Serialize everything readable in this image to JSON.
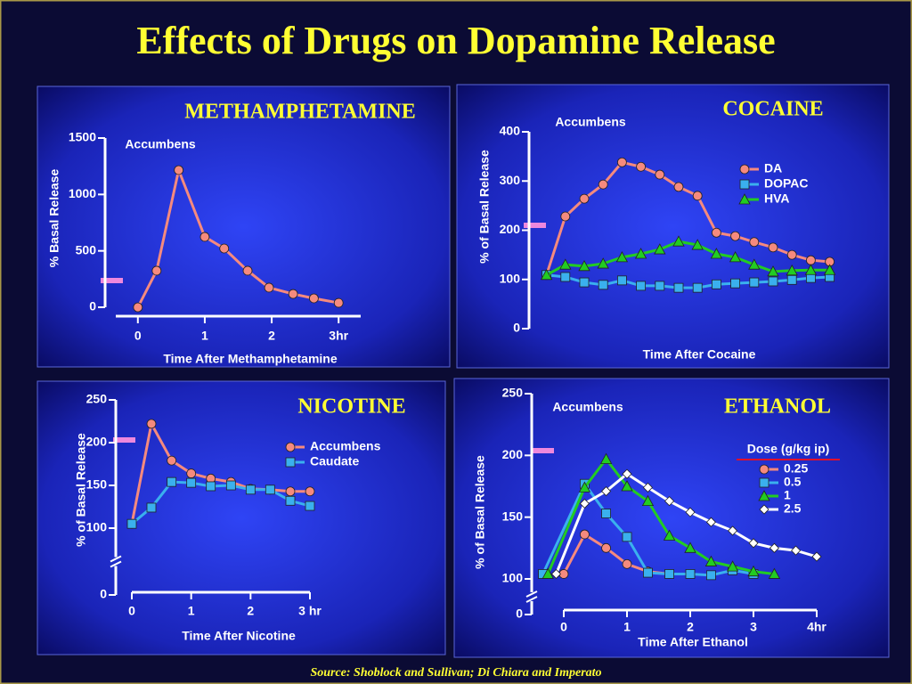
{
  "title": "Effects of Drugs on Dopamine Release",
  "source": "Source: Shoblock and Sullivan; Di Chiara and Imperato",
  "chart_data": [
    {
      "type": "line",
      "title": "METHAMPHETAMINE",
      "annotation": "Accumbens",
      "xlabel": "Time After Methamphetamine",
      "ylabel": "% Basal Release",
      "xlim": [
        -0.33,
        3.33
      ],
      "xticks": [
        0,
        1,
        2,
        {
          "value": 3,
          "label": "3hr"
        }
      ],
      "ylim": [
        0,
        1500
      ],
      "yticks": [
        0,
        500,
        1000,
        1500
      ],
      "x": [
        0,
        0.28,
        0.61,
        1,
        1.29,
        1.64,
        1.96,
        2.32,
        2.63,
        3
      ],
      "series": [
        {
          "color": "#f58a7e",
          "marker": "circle",
          "values": [
            0,
            324,
            1216,
            624,
            521,
            324,
            174,
            118,
            79,
            39
          ]
        }
      ]
    },
    {
      "type": "line",
      "title": "COCAINE",
      "annotation": "Accumbens",
      "xlabel": "Time After Cocaine",
      "ylabel": "% of Basal Release",
      "ylim": [
        0,
        400
      ],
      "yticks": [
        0,
        100,
        200,
        300,
        400
      ],
      "categories": [
        null,
        null,
        null,
        null,
        null,
        null,
        null,
        null,
        null,
        null,
        null,
        null,
        null,
        null,
        null,
        null
      ],
      "series": [
        {
          "name": "DA",
          "color": "#f58a7e",
          "marker": "circle",
          "values": [
            109,
            228,
            264,
            293,
            338,
            329,
            313,
            288,
            270,
            195,
            188,
            176,
            165,
            150,
            139,
            136
          ]
        },
        {
          "name": "DOPAC",
          "color": "#3ab0ee",
          "marker": "square",
          "values": [
            109,
            105,
            94,
            89,
            98,
            87,
            87,
            83,
            83,
            90,
            92,
            94,
            96,
            99,
            103,
            105
          ]
        },
        {
          "name": "HVA",
          "color": "#22cc22",
          "marker": "triangle",
          "values": [
            109,
            130,
            127,
            132,
            145,
            152,
            161,
            177,
            170,
            152,
            145,
            130,
            116,
            118,
            119,
            119
          ]
        }
      ]
    },
    {
      "type": "line",
      "title": "NICOTINE",
      "xlabel": "Time After Nicotine",
      "ylabel": "% of Basal Release",
      "xlim": [
        0,
        3
      ],
      "xticks": [
        0,
        1,
        2,
        {
          "value": 3,
          "label": "3 hr"
        }
      ],
      "ylim": [
        0,
        250
      ],
      "axis_break": [
        0,
        100
      ],
      "yticks": [
        0,
        100,
        150,
        200,
        250
      ],
      "x": [
        0,
        0.33,
        0.67,
        1,
        1.33,
        1.67,
        2,
        2.33,
        2.67,
        3
      ],
      "series": [
        {
          "name": "Accumbens",
          "color": "#f58a7e",
          "marker": "circle",
          "values": [
            105,
            222,
            179,
            164,
            158,
            154,
            146,
            145,
            143,
            143
          ]
        },
        {
          "name": "Caudate",
          "color": "#3ab0ee",
          "marker": "square",
          "values": [
            105,
            124,
            154,
            153,
            149,
            150,
            145,
            145,
            132,
            126
          ]
        }
      ]
    },
    {
      "type": "line",
      "title": "ETHANOL",
      "annotation": "Accumbens",
      "xlabel": "Time After Ethanol",
      "ylabel": "% of Basal Release",
      "legend_title": "Dose (g/kg ip)",
      "xlim": [
        -0.5,
        4
      ],
      "xticks": [
        0,
        1,
        2,
        3,
        {
          "value": 4,
          "label": "4hr"
        }
      ],
      "ylim": [
        0,
        250
      ],
      "axis_break": [
        0,
        100
      ],
      "yticks": [
        0,
        100,
        150,
        200,
        250
      ],
      "series": [
        {
          "name": "0.25",
          "color": "#f58a7e",
          "marker": "circle",
          "x": [
            0,
            0.33,
            0.67,
            1,
            1.33,
            1.67
          ],
          "values": [
            104,
            136,
            125,
            112,
            106,
            104
          ]
        },
        {
          "name": "0.5",
          "color": "#3ab0ee",
          "marker": "square",
          "x": [
            -0.33,
            0.33,
            0.67,
            1,
            1.33,
            1.67,
            2,
            2.33,
            2.67,
            3
          ],
          "values": [
            104,
            177,
            153,
            134,
            105,
            104,
            104,
            103,
            107,
            104
          ]
        },
        {
          "name": "1",
          "color": "#22cc22",
          "marker": "triangle",
          "x": [
            -0.25,
            0.33,
            0.67,
            1,
            1.33,
            1.67,
            2,
            2.33,
            2.67,
            3,
            3.33
          ],
          "values": [
            104,
            174,
            197,
            175,
            163,
            135,
            125,
            114,
            110,
            106,
            104
          ]
        },
        {
          "name": "2.5",
          "color": "#ffffff",
          "marker": "diamond",
          "x": [
            -0.12,
            0.33,
            0.67,
            1,
            1.33,
            1.67,
            2,
            2.33,
            2.67,
            3,
            3.33,
            3.67,
            4
          ],
          "values": [
            104,
            161,
            171,
            185,
            174,
            163,
            154,
            146,
            139,
            129,
            125,
            123,
            118
          ]
        }
      ]
    }
  ]
}
